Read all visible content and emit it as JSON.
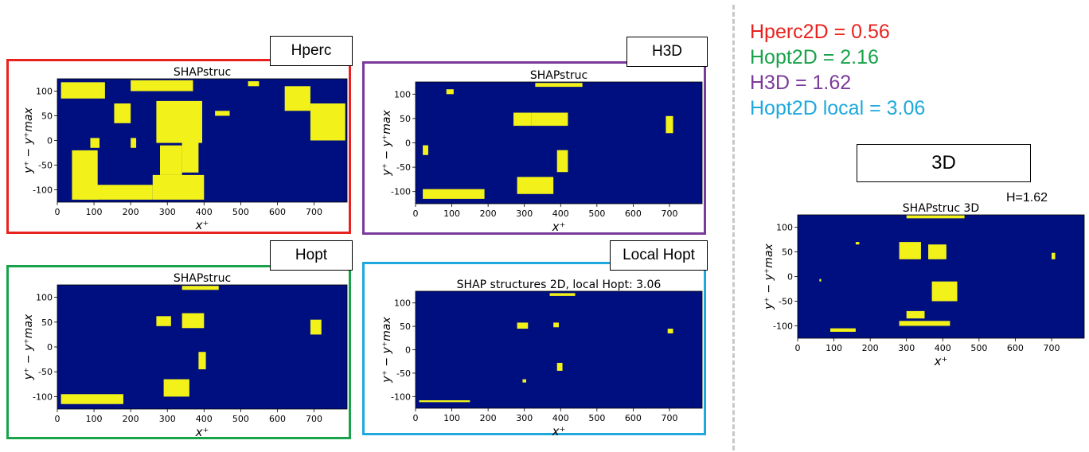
{
  "metrics": [
    {
      "label": "Hperc2D = 0.56",
      "color": "#e8231f"
    },
    {
      "label": "Hopt2D = 2.16",
      "color": "#18a24a"
    },
    {
      "label": "H3D = 1.62",
      "color": "#7a3a9a"
    },
    {
      "label": "Hopt2D local = 3.06",
      "color": "#1ea8dc"
    }
  ],
  "colors": {
    "background": "#000f80",
    "structure": "#f2f21a",
    "divider": "#c8c8c8"
  },
  "panels": [
    {
      "tag": "Hperc",
      "frame_color": "#e8231f"
    },
    {
      "tag": "H3D",
      "frame_color": "#7a3a9a"
    },
    {
      "tag": "Hopt",
      "frame_color": "#18a24a"
    },
    {
      "tag": "Local Hopt",
      "frame_color": "#1ea8dc"
    }
  ],
  "panel_3d": {
    "tag": "3D",
    "h_note": "H=1.62"
  },
  "chart_data": [
    {
      "type": "heatmap",
      "title": "SHAPstruc",
      "xlabel": "x⁺",
      "ylabel": "y⁺ − y⁺max",
      "xlim": [
        0,
        790
      ],
      "ylim": [
        -125,
        125
      ],
      "xticks": [
        0,
        100,
        200,
        300,
        400,
        500,
        600,
        700
      ],
      "yticks": [
        -100,
        -50,
        0,
        50,
        100
      ],
      "structures": [
        {
          "x": [
            10,
            130
          ],
          "y": [
            85,
            118
          ]
        },
        {
          "x": [
            200,
            370
          ],
          "y": [
            100,
            122
          ]
        },
        {
          "x": [
            270,
            395
          ],
          "y": [
            -5,
            80
          ]
        },
        {
          "x": [
            40,
            110
          ],
          "y": [
            -120,
            -20
          ]
        },
        {
          "x": [
            90,
            115
          ],
          "y": [
            -15,
            5
          ]
        },
        {
          "x": [
            60,
            260
          ],
          "y": [
            -120,
            -90
          ]
        },
        {
          "x": [
            260,
            400
          ],
          "y": [
            -120,
            -70
          ]
        },
        {
          "x": [
            280,
            340
          ],
          "y": [
            -70,
            -10
          ]
        },
        {
          "x": [
            340,
            385
          ],
          "y": [
            -65,
            5
          ]
        },
        {
          "x": [
            155,
            200
          ],
          "y": [
            35,
            75
          ]
        },
        {
          "x": [
            200,
            215
          ],
          "y": [
            -15,
            5
          ]
        },
        {
          "x": [
            620,
            690
          ],
          "y": [
            60,
            110
          ]
        },
        {
          "x": [
            690,
            785
          ],
          "y": [
            0,
            75
          ]
        },
        {
          "x": [
            520,
            550
          ],
          "y": [
            110,
            120
          ]
        },
        {
          "x": [
            430,
            470
          ],
          "y": [
            50,
            60
          ]
        }
      ]
    },
    {
      "type": "heatmap",
      "title": "SHAPstruc",
      "xlabel": "x⁺",
      "ylabel": "y⁺ − y⁺max",
      "xlim": [
        0,
        790
      ],
      "ylim": [
        -125,
        125
      ],
      "xticks": [
        0,
        100,
        200,
        300,
        400,
        500,
        600,
        700
      ],
      "yticks": [
        -100,
        -50,
        0,
        50,
        100
      ],
      "structures": [
        {
          "x": [
            270,
            320
          ],
          "y": [
            35,
            62
          ]
        },
        {
          "x": [
            320,
            420
          ],
          "y": [
            35,
            62
          ]
        },
        {
          "x": [
            390,
            420
          ],
          "y": [
            -60,
            -15
          ]
        },
        {
          "x": [
            20,
            190
          ],
          "y": [
            -115,
            -95
          ]
        },
        {
          "x": [
            280,
            380
          ],
          "y": [
            -105,
            -70
          ]
        },
        {
          "x": [
            690,
            710
          ],
          "y": [
            20,
            55
          ]
        },
        {
          "x": [
            85,
            105
          ],
          "y": [
            100,
            110
          ]
        },
        {
          "x": [
            20,
            35
          ],
          "y": [
            -25,
            -5
          ]
        },
        {
          "x": [
            330,
            460
          ],
          "y": [
            115,
            123
          ]
        }
      ]
    },
    {
      "type": "heatmap",
      "title": "SHAPstruc",
      "xlabel": "x⁺",
      "ylabel": "y⁺ − y⁺max",
      "xlim": [
        0,
        790
      ],
      "ylim": [
        -125,
        125
      ],
      "xticks": [
        0,
        100,
        200,
        300,
        400,
        500,
        600,
        700
      ],
      "yticks": [
        -100,
        -50,
        0,
        50,
        100
      ],
      "structures": [
        {
          "x": [
            270,
            310
          ],
          "y": [
            42,
            62
          ]
        },
        {
          "x": [
            340,
            400
          ],
          "y": [
            38,
            68
          ]
        },
        {
          "x": [
            385,
            405
          ],
          "y": [
            -45,
            -10
          ]
        },
        {
          "x": [
            10,
            180
          ],
          "y": [
            -115,
            -95
          ]
        },
        {
          "x": [
            290,
            360
          ],
          "y": [
            -100,
            -65
          ]
        },
        {
          "x": [
            690,
            720
          ],
          "y": [
            25,
            55
          ]
        },
        {
          "x": [
            340,
            440
          ],
          "y": [
            115,
            123
          ]
        }
      ]
    },
    {
      "type": "heatmap",
      "title": "SHAP structures 2D, local Hopt: 3.06",
      "xlabel": "x⁺",
      "ylabel": "y⁺ − y⁺max",
      "xlim": [
        0,
        790
      ],
      "ylim": [
        -125,
        125
      ],
      "xticks": [
        0,
        100,
        200,
        300,
        400,
        500,
        600,
        700
      ],
      "yticks": [
        -100,
        -50,
        0,
        50,
        100
      ],
      "structures": [
        {
          "x": [
            280,
            310
          ],
          "y": [
            45,
            58
          ]
        },
        {
          "x": [
            380,
            395
          ],
          "y": [
            48,
            58
          ]
        },
        {
          "x": [
            390,
            405
          ],
          "y": [
            -45,
            -28
          ]
        },
        {
          "x": [
            10,
            150
          ],
          "y": [
            -112,
            -108
          ]
        },
        {
          "x": [
            295,
            305
          ],
          "y": [
            -70,
            -63
          ]
        },
        {
          "x": [
            695,
            710
          ],
          "y": [
            35,
            45
          ]
        },
        {
          "x": [
            370,
            440
          ],
          "y": [
            115,
            121
          ]
        }
      ]
    },
    {
      "type": "heatmap",
      "title": "SHAPstruc 3D",
      "xlabel": "x⁺",
      "ylabel": "y⁺ − y⁺max",
      "xlim": [
        0,
        790
      ],
      "ylim": [
        -125,
        125
      ],
      "xticks": [
        0,
        100,
        200,
        300,
        400,
        500,
        600,
        700
      ],
      "yticks": [
        -100,
        -50,
        0,
        50,
        100
      ],
      "structures": [
        {
          "x": [
            280,
            340
          ],
          "y": [
            35,
            70
          ]
        },
        {
          "x": [
            360,
            410
          ],
          "y": [
            35,
            65
          ]
        },
        {
          "x": [
            370,
            440
          ],
          "y": [
            -50,
            -10
          ]
        },
        {
          "x": [
            300,
            350
          ],
          "y": [
            -85,
            -70
          ]
        },
        {
          "x": [
            280,
            420
          ],
          "y": [
            -100,
            -90
          ]
        },
        {
          "x": [
            90,
            160
          ],
          "y": [
            -112,
            -105
          ]
        },
        {
          "x": [
            700,
            710
          ],
          "y": [
            35,
            48
          ]
        },
        {
          "x": [
            160,
            170
          ],
          "y": [
            65,
            70
          ]
        },
        {
          "x": [
            60,
            65
          ],
          "y": [
            -10,
            -5
          ]
        },
        {
          "x": [
            300,
            460
          ],
          "y": [
            118,
            124
          ]
        }
      ]
    }
  ]
}
